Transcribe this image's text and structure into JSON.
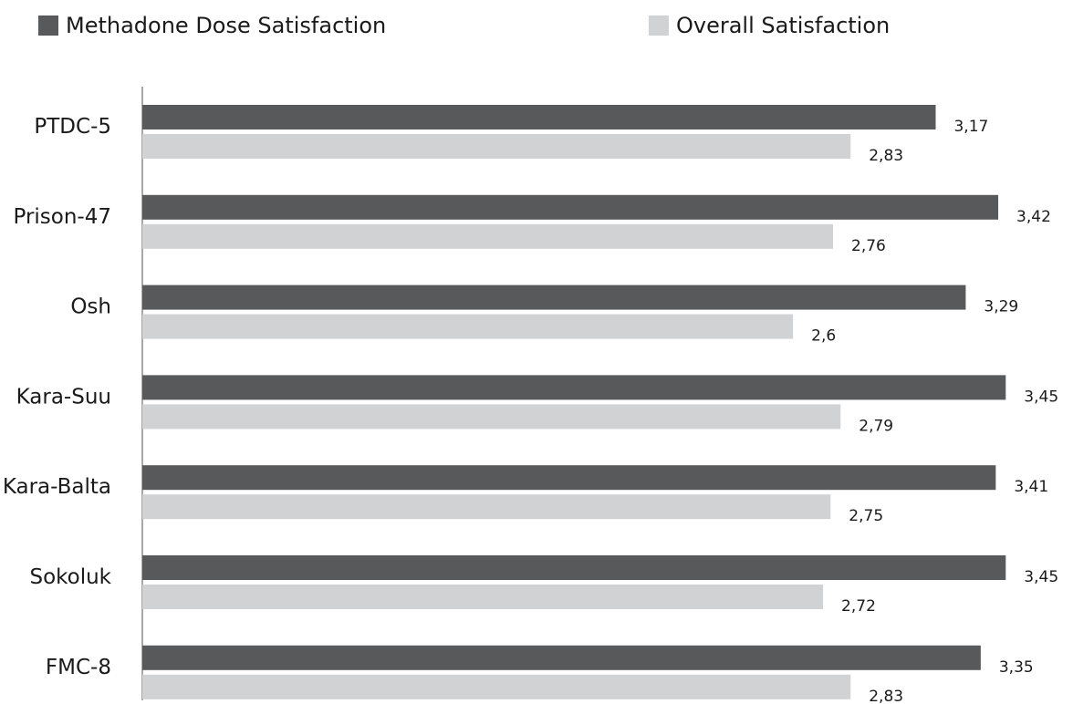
{
  "chart_data": {
    "type": "bar",
    "orientation": "horizontal",
    "categories": [
      "PTDC-5",
      "Prison-47",
      "Osh",
      "Kara-Suu",
      "Kara-Balta",
      "Sokoluk",
      "FMC-8"
    ],
    "series": [
      {
        "name": "Methadone Dose Satisfaction",
        "color": "#58595b",
        "values": [
          3.17,
          3.42,
          3.29,
          3.45,
          3.41,
          3.45,
          3.35
        ],
        "labels": [
          "3,17",
          "3,42",
          "3,29",
          "3,45",
          "3,41",
          "3,45",
          "3,35"
        ]
      },
      {
        "name": "Overall Satisfaction",
        "color": "#d1d2d4",
        "values": [
          2.83,
          2.76,
          2.6,
          2.79,
          2.75,
          2.72,
          2.83
        ],
        "labels": [
          "2,83",
          "2,76",
          "2,6",
          "2,79",
          "2,75",
          "2,72",
          "2,83"
        ]
      }
    ],
    "xlim": [
      0,
      3.5
    ],
    "grid": false,
    "legend_position": "top"
  }
}
